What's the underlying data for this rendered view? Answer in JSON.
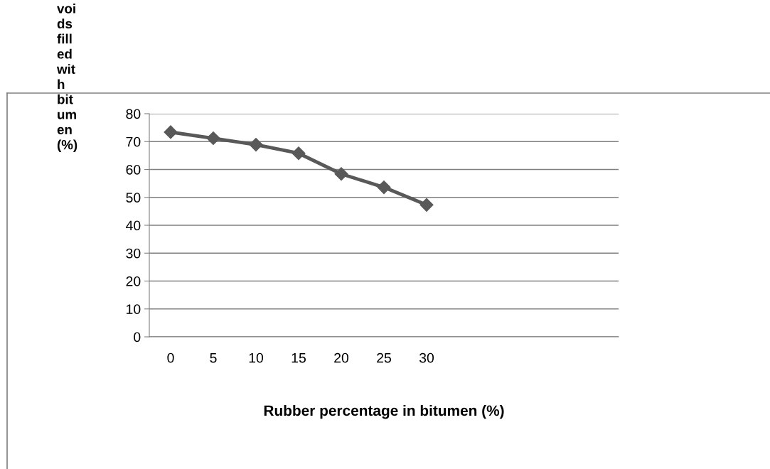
{
  "chart_data": {
    "type": "line",
    "xlabel": "Rubber percentage in bitumen (%)",
    "ylabel": "voi\nds\nfill\ned\nwit\nh\nbit\num\nen\n(%)",
    "categories": [
      "0",
      "5",
      "10",
      "15",
      "20",
      "25",
      "30",
      null,
      null,
      null,
      null
    ],
    "series": [
      {
        "color": "#595959",
        "values": [
          73.4,
          71.2,
          68.9,
          65.8,
          58.4,
          53.6,
          47.3,
          null,
          null,
          null,
          null
        ]
      }
    ],
    "ylim": [
      0,
      80
    ],
    "yticks": [
      0,
      10,
      20,
      30,
      40,
      50,
      60,
      70,
      80
    ],
    "grid": "y",
    "marker": "diamond",
    "line_style": "solid",
    "legend": false
  }
}
